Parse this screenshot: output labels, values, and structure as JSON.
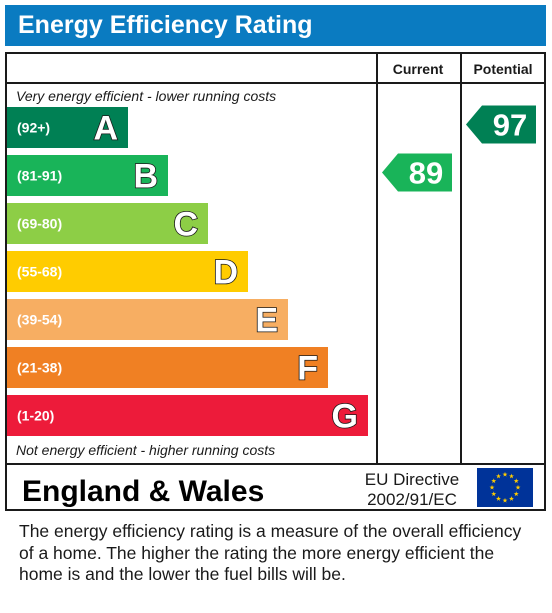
{
  "title": "Energy Efficiency Rating",
  "chart_data": {
    "type": "bar",
    "columns": [
      "Current",
      "Potential"
    ],
    "top_note": "Very energy efficient - lower running costs",
    "bottom_note": "Not energy efficient - higher running costs",
    "bands": [
      {
        "letter": "A",
        "range": "(92+)",
        "color": "#008054"
      },
      {
        "letter": "B",
        "range": "(81-91)",
        "color": "#19b459"
      },
      {
        "letter": "C",
        "range": "(69-80)",
        "color": "#8dce46"
      },
      {
        "letter": "D",
        "range": "(55-68)",
        "color": "#ffcc00"
      },
      {
        "letter": "E",
        "range": "(39-54)",
        "color": "#f7ae62"
      },
      {
        "letter": "F",
        "range": "(21-38)",
        "color": "#f08023"
      },
      {
        "letter": "G",
        "range": "(1-20)",
        "color": "#ed1b3a"
      }
    ],
    "current": {
      "value": 89,
      "band": "B",
      "color": "#19b459"
    },
    "potential": {
      "value": 97,
      "band": "A",
      "color": "#008054"
    }
  },
  "footer": {
    "region": "England & Wales",
    "directive_line1": "EU Directive",
    "directive_line2": "2002/91/EC",
    "flag": "eu-flag-icon"
  },
  "description": "The energy efficiency rating is a measure of the overall efficiency of a home.  The higher the rating the more energy efficient the home is and the lower the fuel bills will be."
}
